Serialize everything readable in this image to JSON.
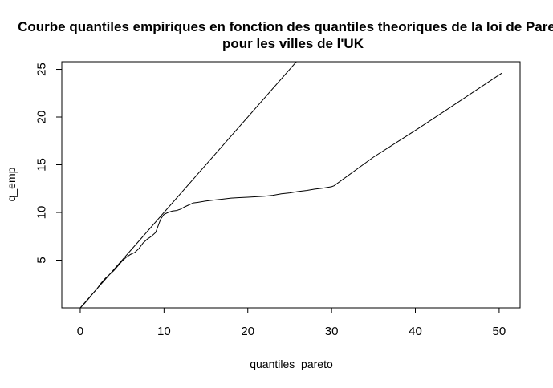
{
  "chart_data": {
    "type": "line",
    "title": "Courbe quantiles empiriques en fonction des quantiles theoriques de la loi de Pareto",
    "subtitle": "pour les villes de l'UK",
    "xlabel": "quantiles_pareto",
    "ylabel": "q_emp",
    "xlim": [
      -2.2,
      52.5
    ],
    "ylim": [
      0,
      25.8
    ],
    "x_ticks": [
      0,
      10,
      20,
      30,
      40,
      50
    ],
    "x_tick_labels": [
      "0",
      "10",
      "20",
      "30",
      "40",
      "50"
    ],
    "y_ticks": [
      5,
      10,
      15,
      20,
      25
    ],
    "y_tick_labels": [
      "5",
      "10",
      "15",
      "20",
      "25"
    ],
    "grid": false,
    "series": [
      {
        "kind": "line",
        "points": [
          [
            0,
            0
          ],
          [
            0.5,
            0.45
          ],
          [
            1,
            0.95
          ],
          [
            1.5,
            1.5
          ],
          [
            2,
            2.0
          ],
          [
            2.5,
            2.6
          ],
          [
            3,
            3.1
          ],
          [
            3.5,
            3.5
          ],
          [
            4,
            3.9
          ],
          [
            4.5,
            4.4
          ],
          [
            5,
            4.9
          ],
          [
            5.5,
            5.3
          ],
          [
            6,
            5.6
          ],
          [
            6.5,
            5.8
          ],
          [
            7,
            6.2
          ],
          [
            7.5,
            6.8
          ],
          [
            8,
            7.2
          ],
          [
            8.5,
            7.5
          ],
          [
            9,
            7.9
          ],
          [
            9.3,
            8.6
          ],
          [
            9.6,
            9.3
          ],
          [
            10,
            9.8
          ],
          [
            10.5,
            10.0
          ],
          [
            11,
            10.15
          ],
          [
            11.5,
            10.2
          ],
          [
            12,
            10.35
          ],
          [
            12.5,
            10.6
          ],
          [
            13,
            10.8
          ],
          [
            13.5,
            11.0
          ],
          [
            14,
            11.05
          ],
          [
            15,
            11.2
          ],
          [
            16,
            11.3
          ],
          [
            17,
            11.4
          ],
          [
            18,
            11.5
          ],
          [
            19,
            11.55
          ],
          [
            20,
            11.6
          ],
          [
            21,
            11.65
          ],
          [
            22,
            11.7
          ],
          [
            23,
            11.8
          ],
          [
            24,
            11.95
          ],
          [
            25,
            12.05
          ],
          [
            26,
            12.2
          ],
          [
            27,
            12.3
          ],
          [
            28,
            12.45
          ],
          [
            29,
            12.55
          ],
          [
            30,
            12.7
          ],
          [
            30.3,
            12.8
          ],
          [
            35,
            15.8
          ],
          [
            40,
            18.6
          ],
          [
            45,
            21.5
          ],
          [
            50.3,
            24.6
          ]
        ]
      },
      {
        "kind": "abline",
        "intercept": 0,
        "slope": 1
      }
    ]
  }
}
